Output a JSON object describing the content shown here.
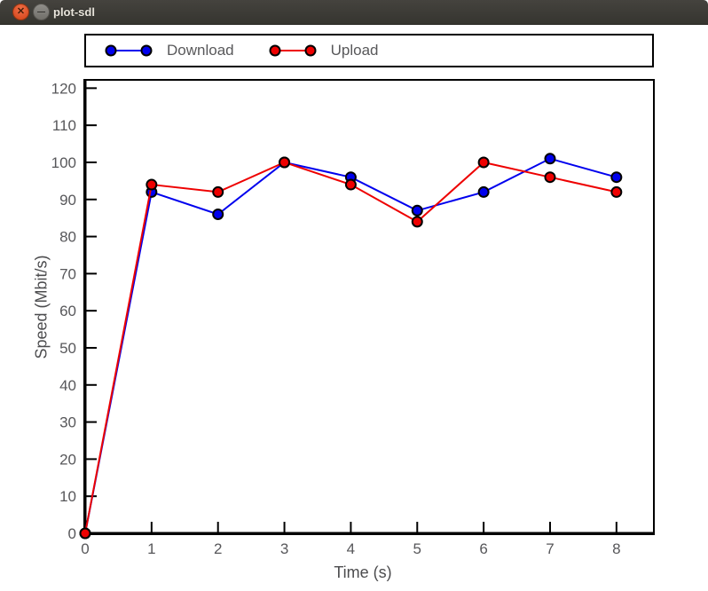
{
  "window": {
    "title": "plot-sdl",
    "controls": {
      "close_glyph": "✕",
      "minimize_glyph": "—"
    }
  },
  "chart_data": {
    "type": "line",
    "title": "",
    "xlabel": "Time (s)",
    "ylabel": "Speed (Mbit/s)",
    "x": [
      0,
      1,
      2,
      3,
      4,
      5,
      6,
      7,
      8
    ],
    "series": [
      {
        "name": "Download",
        "color": "#0000ee",
        "values": [
          0,
          92,
          86,
          100,
          96,
          87,
          92,
          101,
          96
        ]
      },
      {
        "name": "Upload",
        "color": "#ee0000",
        "values": [
          0,
          94,
          92,
          100,
          94,
          84,
          100,
          96,
          92
        ]
      }
    ],
    "x_ticks": [
      0,
      1,
      2,
      3,
      4,
      5,
      6,
      7,
      8
    ],
    "y_ticks": [
      0,
      10,
      20,
      30,
      40,
      50,
      60,
      70,
      80,
      90,
      100,
      110,
      120
    ],
    "xlim": [
      0,
      8.55
    ],
    "ylim": [
      0,
      122
    ],
    "grid": false,
    "legend_position": "top",
    "marker": "circle",
    "marker_outline": "#000000",
    "axis_color": "#000000",
    "tick_label_color": "#57575a",
    "axis_label_color": "#4c4c4e"
  },
  "colors": {
    "titlebar_bg": "#3b3a36",
    "close_button": "#e0552d",
    "minimize_button": "#807e79",
    "title_text": "#e8e4db",
    "plot_background": "#ffffff"
  }
}
